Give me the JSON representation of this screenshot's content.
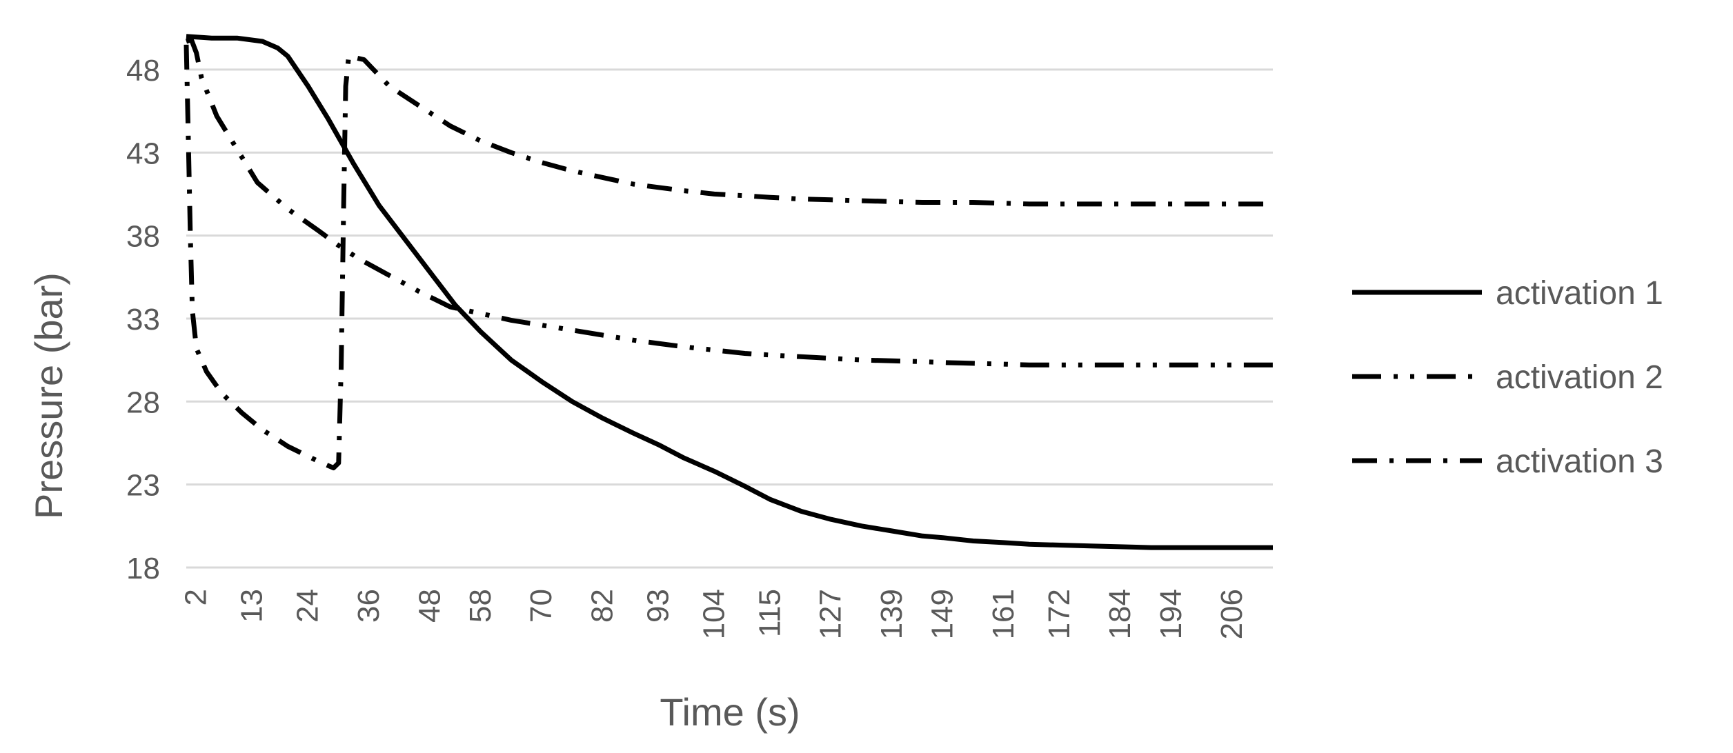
{
  "chart_data": {
    "type": "line",
    "title": "",
    "xlabel": "Time (s)",
    "ylabel": "Pressure (bar)",
    "x_tick_labels": [
      "2",
      "13",
      "24",
      "36",
      "48",
      "58",
      "70",
      "82",
      "93",
      "104",
      "115",
      "127",
      "139",
      "149",
      "161",
      "172",
      "184",
      "194",
      "206"
    ],
    "y_tick_labels": [
      "18",
      "23",
      "28",
      "33",
      "38",
      "43",
      "48"
    ],
    "xlim": [
      0,
      214
    ],
    "ylim": [
      18,
      50
    ],
    "grid": "horizontal",
    "legend_position": "right",
    "series": [
      {
        "name": "activation 1",
        "line_style": "solid",
        "x": [
          0,
          5,
          10,
          15,
          18,
          20,
          24,
          28,
          33,
          38,
          43,
          48,
          53,
          58,
          64,
          70,
          76,
          82,
          88,
          93,
          98,
          104,
          110,
          115,
          121,
          127,
          133,
          139,
          145,
          149,
          155,
          161,
          166,
          172,
          178,
          184,
          190,
          194,
          200,
          206,
          214
        ],
        "y": [
          50,
          49.9,
          49.9,
          49.7,
          49.3,
          48.8,
          47,
          45,
          42.3,
          39.8,
          37.8,
          35.8,
          33.8,
          32.2,
          30.5,
          29.2,
          28,
          27,
          26.1,
          25.4,
          24.6,
          23.8,
          22.9,
          22.1,
          21.4,
          20.9,
          20.5,
          20.2,
          19.9,
          19.8,
          19.6,
          19.5,
          19.4,
          19.35,
          19.3,
          19.25,
          19.2,
          19.2,
          19.2,
          19.2,
          19.2
        ]
      },
      {
        "name": "activation 2",
        "line_style": "dash-dot-dot",
        "x": [
          0,
          1,
          2,
          3,
          6,
          10,
          14,
          20,
          26,
          30,
          34,
          40,
          46,
          52,
          58,
          64,
          70,
          76,
          82,
          88,
          93,
          98,
          104,
          110,
          115,
          121,
          127,
          133,
          139,
          145,
          149,
          155,
          161,
          166,
          172,
          178,
          184,
          190,
          194,
          200,
          206,
          214
        ],
        "y": [
          49.7,
          49.8,
          49,
          47.5,
          45.2,
          43.2,
          41.2,
          39.6,
          38.3,
          37.4,
          36.6,
          35.6,
          34.6,
          33.7,
          33.3,
          32.9,
          32.6,
          32.3,
          32,
          31.7,
          31.5,
          31.3,
          31.1,
          30.9,
          30.8,
          30.7,
          30.6,
          30.5,
          30.45,
          30.4,
          30.35,
          30.3,
          30.25,
          30.2,
          30.2,
          30.2,
          30.2,
          30.2,
          30.2,
          30.2,
          30.2,
          30.2
        ]
      },
      {
        "name": "activation 3",
        "line_style": "dash-dot",
        "x": [
          0,
          0.4,
          0.8,
          1.2,
          2,
          4,
          7,
          11,
          15,
          20,
          26,
          29,
          30,
          30.5,
          31,
          31.4,
          32,
          35,
          40,
          46,
          52,
          58,
          64,
          70,
          76,
          82,
          88,
          93,
          98,
          104,
          110,
          115,
          121,
          127,
          133,
          139,
          145,
          149,
          155,
          161,
          166,
          172,
          178,
          184,
          190,
          194,
          200,
          206,
          214
        ],
        "y": [
          49.5,
          44,
          38,
          33.5,
          31.2,
          29.8,
          28.5,
          27.3,
          26.3,
          25.3,
          24.4,
          24,
          24.3,
          30,
          40,
          47,
          48.8,
          48.6,
          47,
          45.8,
          44.6,
          43.7,
          43,
          42.4,
          41.9,
          41.5,
          41.1,
          40.9,
          40.7,
          40.5,
          40.4,
          40.3,
          40.2,
          40.15,
          40.1,
          40.05,
          40,
          40,
          40,
          39.95,
          39.9,
          39.9,
          39.9,
          39.9,
          39.9,
          39.9,
          39.9,
          39.9,
          39.9
        ]
      }
    ]
  }
}
